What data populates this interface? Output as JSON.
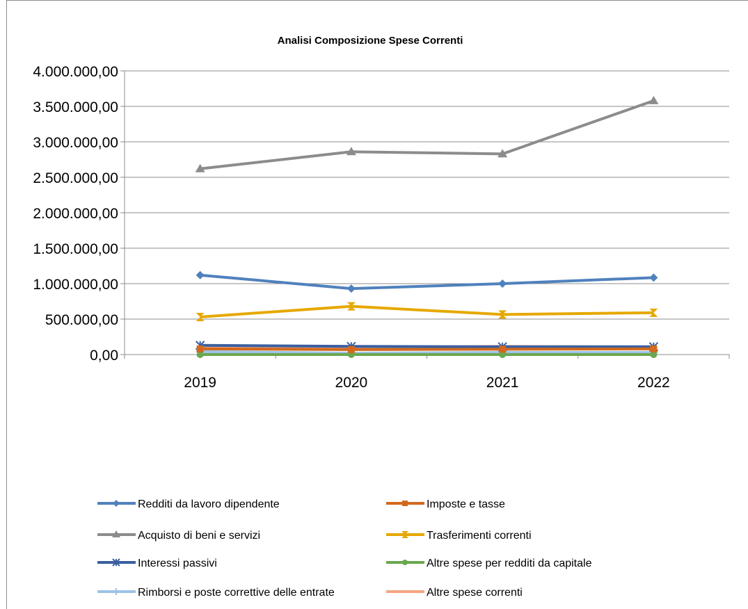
{
  "chart_data": {
    "type": "line",
    "title": "Analisi Composizione Spese Correnti",
    "xlabel": "",
    "ylabel": "",
    "categories": [
      "2019",
      "2020",
      "2021",
      "2022"
    ],
    "ylim": [
      0,
      4000000
    ],
    "yticks": [
      0,
      500000,
      1000000,
      1500000,
      2000000,
      2500000,
      3000000,
      3500000,
      4000000
    ],
    "ytick_labels": [
      "0,00",
      "500.000,00",
      "1.000.000,00",
      "1.500.000,00",
      "2.000.000,00",
      "2.500.000,00",
      "3.000.000,00",
      "3.500.000,00",
      "4.000.000,00"
    ],
    "grid": true,
    "legend_position": "bottom",
    "series": [
      {
        "name": "Redditi da lavoro dipendente",
        "values": [
          1120000,
          930000,
          1000000,
          1085000
        ],
        "color": "#4f81bd",
        "marker": "diamond"
      },
      {
        "name": "Imposte e tasse",
        "values": [
          80000,
          70000,
          75000,
          80000
        ],
        "color": "#d2691e",
        "marker": "square"
      },
      {
        "name": "Acquisto di beni e servizi",
        "values": [
          2620000,
          2860000,
          2830000,
          3580000
        ],
        "color": "#8c8c8c",
        "marker": "triangle"
      },
      {
        "name": "Trasferimenti correnti",
        "values": [
          530000,
          680000,
          565000,
          590000
        ],
        "color": "#e6a800",
        "marker": "hourglass"
      },
      {
        "name": "Interessi passivi",
        "values": [
          130000,
          115000,
          110000,
          110000
        ],
        "color": "#3a5fa0",
        "marker": "star"
      },
      {
        "name": "Altre spese per redditi da capitale",
        "values": [
          0,
          0,
          0,
          0
        ],
        "color": "#6aa84f",
        "marker": "circle"
      },
      {
        "name": "Rimborsi e poste correttive delle entrate",
        "values": [
          40000,
          20000,
          30000,
          30000
        ],
        "color": "#9dc3e6",
        "marker": "plus"
      },
      {
        "name": "Altre spese correnti",
        "values": [
          110000,
          100000,
          115000,
          105000
        ],
        "color": "#f4a582",
        "marker": "none"
      }
    ]
  }
}
